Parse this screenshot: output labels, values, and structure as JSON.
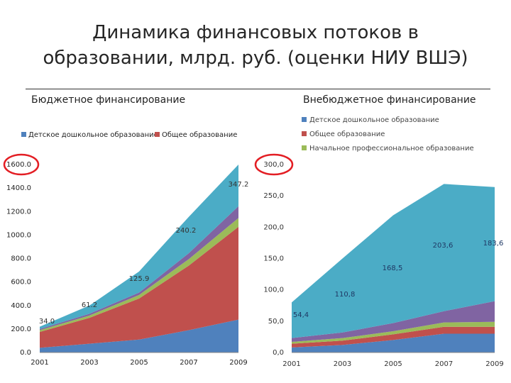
{
  "title_line1": "Динамика финансовых потоков в",
  "title_line2": "образовании, млрд. руб. (оценки НИУ ВШЭ)",
  "left_heading": "Бюджетное финансирование",
  "right_heading": "Внебюджетное финансирование",
  "colors": {
    "blue": "#4f81bd",
    "red": "#c0504d",
    "green": "#9bbb59",
    "purple": "#8064a2",
    "teal": "#4bacc6",
    "highlight": "#e31e24"
  },
  "chart_data": [
    {
      "type": "area",
      "stacked": true,
      "x": [
        "2001",
        "2003",
        "2005",
        "2007",
        "2009"
      ],
      "ylim": [
        0,
        1600
      ],
      "yticks": [
        "0.0",
        "200.0",
        "400.0",
        "600.0",
        "800.0",
        "1000.0",
        "1200.0",
        "1400.0",
        "1600.0"
      ],
      "grid": false,
      "legend_position": "top",
      "legend": [
        "Детское дошкольное образование",
        "Общее образование"
      ],
      "series": [
        {
          "name": "Детское дошкольное образование",
          "color": "#4f81bd",
          "values": [
            40,
            75,
            110,
            190,
            280
          ]
        },
        {
          "name": "Общее образование",
          "color": "#c0504d",
          "values": [
            135,
            220,
            350,
            550,
            790
          ]
        },
        {
          "color": "#9bbb59",
          "values": [
            15,
            20,
            30,
            55,
            75
          ]
        },
        {
          "color": "#8064a2",
          "values": [
            10,
            15,
            20,
            50,
            100
          ]
        },
        {
          "color": "#4bacc6",
          "values": [
            20,
            70,
            180,
            310,
            355
          ]
        }
      ],
      "data_labels": [
        "34.0",
        "61.2",
        "125.9",
        "240.2",
        "347.2"
      ],
      "highlighted_tick": "1600.0"
    },
    {
      "type": "area",
      "stacked": true,
      "x": [
        "2001",
        "2003",
        "2005",
        "2007",
        "2009"
      ],
      "ylim": [
        0,
        300
      ],
      "yticks": [
        "0,0",
        "50,0",
        "100,0",
        "150,0",
        "200,0",
        "250,0",
        "300,0"
      ],
      "grid": false,
      "legend_position": "top",
      "legend": [
        "Детское дошкольное образование",
        "Общее образование",
        "Начальное профессиональное образование"
      ],
      "series": [
        {
          "name": "Детское дошкольное образование",
          "color": "#4f81bd",
          "values": [
            8,
            12,
            20,
            30,
            30
          ]
        },
        {
          "name": "Общее образование",
          "color": "#c0504d",
          "values": [
            6,
            7,
            9,
            11,
            11
          ]
        },
        {
          "name": "Начальное профессиональное образование",
          "color": "#9bbb59",
          "values": [
            3,
            4,
            5,
            7,
            8
          ]
        },
        {
          "color": "#8064a2",
          "values": [
            6,
            9,
            13,
            18,
            33
          ]
        },
        {
          "color": "#4bacc6",
          "values": [
            57,
            118,
            172,
            203,
            182
          ]
        }
      ],
      "data_labels": [
        "54,4",
        "110,8",
        "168,5",
        "203,6",
        "183,6"
      ],
      "highlighted_tick": "300,0"
    }
  ]
}
